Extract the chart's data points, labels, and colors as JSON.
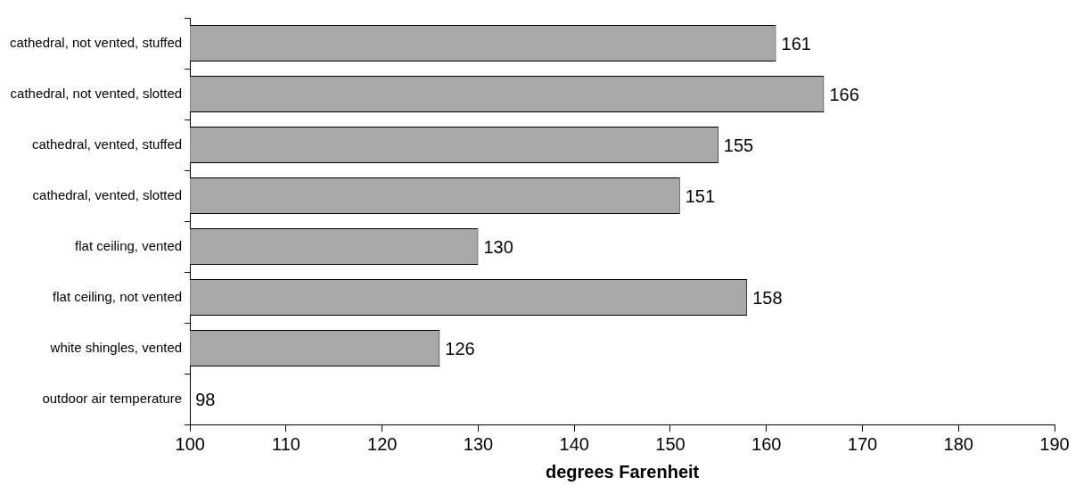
{
  "chart_data": {
    "type": "bar",
    "orientation": "horizontal",
    "xlabel": "degrees Farenheit",
    "categories": [
      "cathedral, not vented, stuffed",
      "cathedral, not vented, slotted",
      "cathedral, vented, stuffed",
      "cathedral, vented, slotted",
      "flat ceiling, vented",
      "flat ceiling, not vented",
      "white shingles, vented",
      "outdoor air temperature"
    ],
    "values": [
      161,
      166,
      155,
      151,
      130,
      158,
      126,
      null
    ],
    "value_labels": [
      "161",
      "166",
      "155",
      "151",
      "130",
      "158",
      "126",
      "98"
    ],
    "color": "#a8a8a8",
    "xlim": [
      100,
      190
    ],
    "xticks": [
      100,
      110,
      120,
      130,
      140,
      150,
      160,
      170,
      180,
      190
    ],
    "grid": false,
    "legend": false
  }
}
